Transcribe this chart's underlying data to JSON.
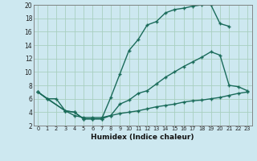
{
  "xlabel": "Humidex (Indice chaleur)",
  "bg_color": "#cde8f0",
  "grid_color": "#a8cfc0",
  "line_color": "#1a6b5a",
  "xlim": [
    -0.5,
    23.5
  ],
  "ylim": [
    2,
    20
  ],
  "xticks": [
    0,
    1,
    2,
    3,
    4,
    5,
    6,
    7,
    8,
    9,
    10,
    11,
    12,
    13,
    14,
    15,
    16,
    17,
    18,
    19,
    20,
    21,
    22,
    23
  ],
  "yticks": [
    2,
    4,
    6,
    8,
    10,
    12,
    14,
    16,
    18,
    20
  ],
  "line1_x": [
    0,
    1,
    2,
    3,
    4,
    5,
    6,
    7,
    8,
    9,
    10,
    11,
    12,
    13,
    14,
    15,
    16,
    17,
    18,
    19,
    20,
    21
  ],
  "line1_y": [
    7.0,
    6.0,
    6.0,
    4.2,
    4.0,
    3.0,
    3.0,
    3.0,
    6.2,
    9.7,
    13.2,
    14.8,
    17.0,
    17.5,
    18.8,
    19.3,
    19.5,
    19.8,
    20.0,
    20.0,
    17.2,
    16.8
  ],
  "line2_x": [
    0,
    3,
    4,
    5,
    6,
    7,
    8,
    9,
    10,
    11,
    12,
    13,
    14,
    15,
    16,
    17,
    18,
    19,
    20,
    21,
    22,
    23
  ],
  "line2_y": [
    7.0,
    4.2,
    4.0,
    3.0,
    3.0,
    3.0,
    3.5,
    5.2,
    5.8,
    6.8,
    7.2,
    8.2,
    9.2,
    10.0,
    10.8,
    11.5,
    12.2,
    13.0,
    12.5,
    8.0,
    7.8,
    7.2
  ],
  "line3_x": [
    0,
    1,
    3,
    4,
    5,
    6,
    7,
    8,
    9,
    10,
    11,
    12,
    13,
    14,
    15,
    16,
    17,
    18,
    19,
    20,
    21,
    22,
    23
  ],
  "line3_y": [
    7.0,
    6.0,
    4.2,
    3.5,
    3.2,
    3.2,
    3.2,
    3.5,
    3.8,
    4.0,
    4.2,
    4.5,
    4.8,
    5.0,
    5.2,
    5.5,
    5.7,
    5.8,
    6.0,
    6.2,
    6.5,
    6.8,
    7.0
  ]
}
